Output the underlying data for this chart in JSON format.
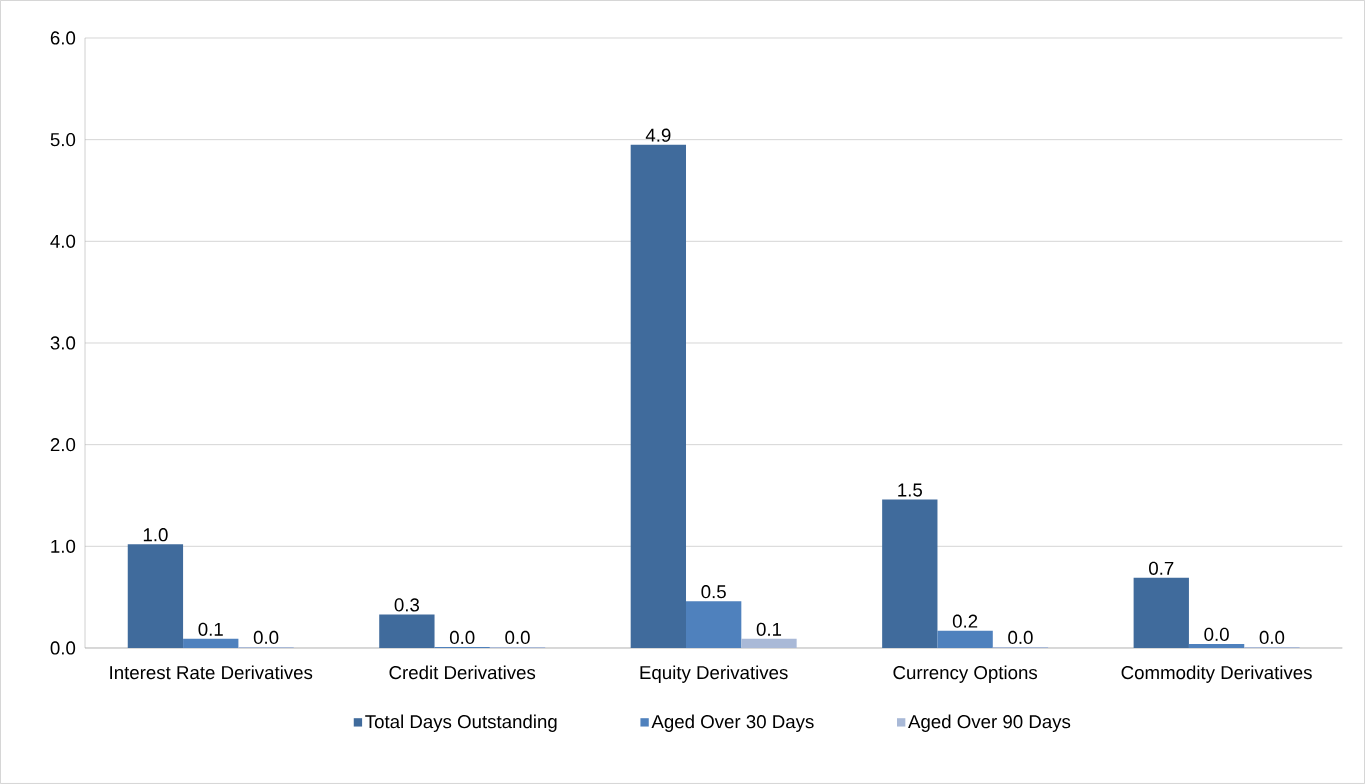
{
  "chart_data": {
    "type": "bar",
    "categories": [
      "Interest Rate Derivatives",
      "Credit Derivatives",
      "Equity Derivatives",
      "Currency Options",
      "Commodity Derivatives"
    ],
    "series": [
      {
        "name": "Total Days Outstanding",
        "color": "#406b9c",
        "values": [
          1.02,
          0.33,
          4.95,
          1.46,
          0.69
        ],
        "value_labels": [
          "1.0",
          "0.3",
          "4.9",
          "1.5",
          "0.7"
        ]
      },
      {
        "name": "Aged Over 30 Days",
        "color": "#4f81bd",
        "values": [
          0.09,
          0.01,
          0.46,
          0.17,
          0.04
        ],
        "value_labels": [
          "0.1",
          "0.0",
          "0.5",
          "0.2",
          "0.0"
        ]
      },
      {
        "name": "Aged Over 90 Days",
        "color": "#a9b9d7",
        "values": [
          0.01,
          0.01,
          0.09,
          0.01,
          0.01
        ],
        "value_labels": [
          "0.0",
          "0.0",
          "0.1",
          "0.0",
          "0.0"
        ]
      }
    ],
    "ylim": [
      0,
      6
    ],
    "yticks": [
      {
        "value": 0,
        "label": "0.0"
      },
      {
        "value": 1,
        "label": "1.0"
      },
      {
        "value": 2,
        "label": "2.0"
      },
      {
        "value": 3,
        "label": "3.0"
      },
      {
        "value": 4,
        "label": "4.0"
      },
      {
        "value": 5,
        "label": "5.0"
      },
      {
        "value": 6,
        "label": "6.0"
      }
    ],
    "grid": "y",
    "legend": "bottom"
  }
}
